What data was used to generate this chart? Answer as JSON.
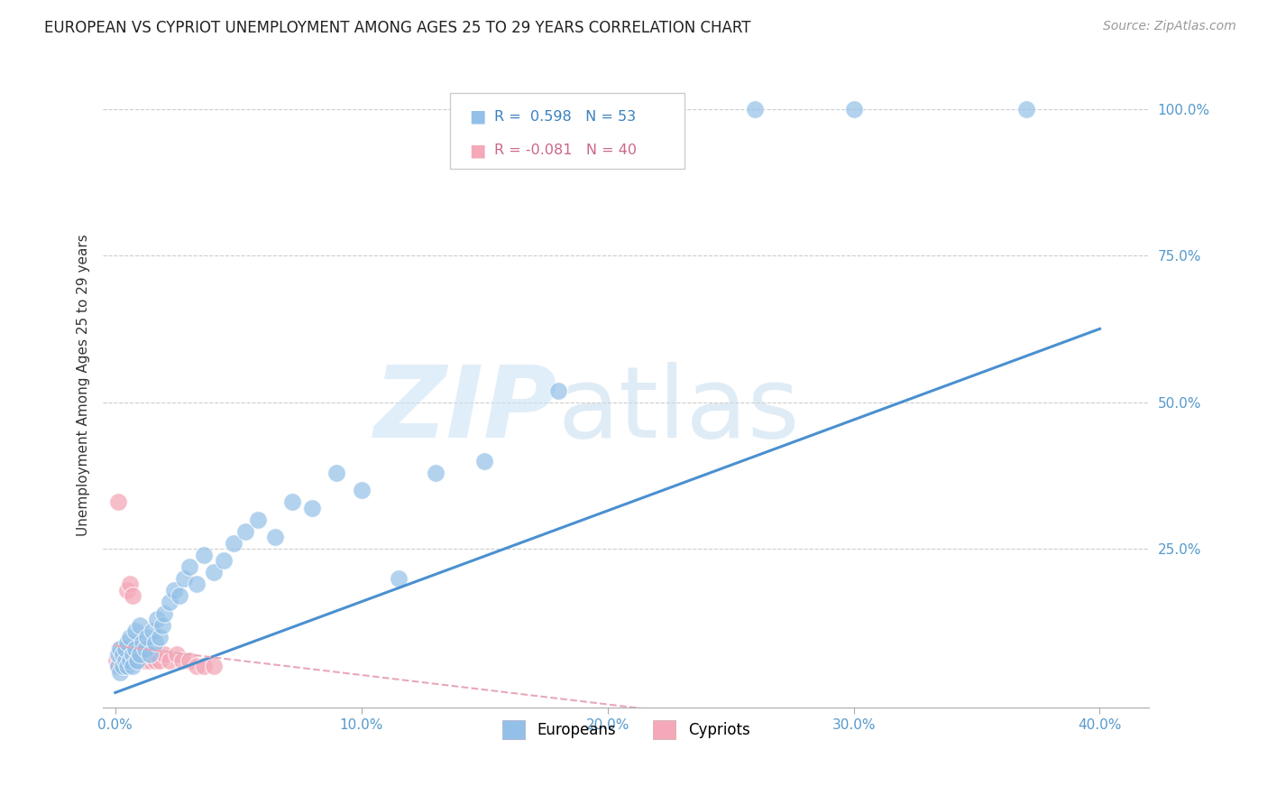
{
  "title": "EUROPEAN VS CYPRIOT UNEMPLOYMENT AMONG AGES 25 TO 29 YEARS CORRELATION CHART",
  "source": "Source: ZipAtlas.com",
  "ylabel": "Unemployment Among Ages 25 to 29 years",
  "xlim": [
    -0.005,
    0.42
  ],
  "ylim": [
    -0.02,
    1.08
  ],
  "xticks": [
    0.0,
    0.1,
    0.2,
    0.3,
    0.4
  ],
  "yticks": [
    0.0,
    0.25,
    0.5,
    0.75,
    1.0
  ],
  "xticklabels": [
    "0.0%",
    "10.0%",
    "20.0%",
    "30.0%",
    "40.0%"
  ],
  "yticklabels": [
    "",
    "25.0%",
    "50.0%",
    "75.0%",
    "100.0%"
  ],
  "grid_color": "#cccccc",
  "background_color": "#ffffff",
  "blue_color": "#92c0e8",
  "pink_color": "#f4a8b8",
  "blue_line_color": "#4a90d0",
  "pink_line_color": "#e8a8b8",
  "blue_line_slope": 1.55,
  "blue_line_intercept": 0.005,
  "pink_line_slope": -0.5,
  "pink_line_intercept": 0.085,
  "europeans_x": [
    0.001,
    0.001,
    0.002,
    0.002,
    0.003,
    0.003,
    0.004,
    0.004,
    0.005,
    0.005,
    0.006,
    0.006,
    0.007,
    0.007,
    0.008,
    0.008,
    0.009,
    0.01,
    0.01,
    0.011,
    0.012,
    0.013,
    0.014,
    0.015,
    0.016,
    0.017,
    0.018,
    0.019,
    0.02,
    0.022,
    0.024,
    0.026,
    0.028,
    0.03,
    0.033,
    0.036,
    0.04,
    0.044,
    0.048,
    0.053,
    0.058,
    0.065,
    0.072,
    0.08,
    0.09,
    0.1,
    0.115,
    0.13,
    0.15,
    0.18,
    0.26,
    0.3,
    0.37
  ],
  "europeans_y": [
    0.05,
    0.07,
    0.04,
    0.08,
    0.05,
    0.07,
    0.06,
    0.08,
    0.05,
    0.09,
    0.06,
    0.1,
    0.07,
    0.05,
    0.08,
    0.11,
    0.06,
    0.07,
    0.12,
    0.09,
    0.08,
    0.1,
    0.07,
    0.11,
    0.09,
    0.13,
    0.1,
    0.12,
    0.14,
    0.16,
    0.18,
    0.17,
    0.2,
    0.22,
    0.19,
    0.24,
    0.21,
    0.23,
    0.26,
    0.28,
    0.3,
    0.27,
    0.33,
    0.32,
    0.38,
    0.35,
    0.2,
    0.38,
    0.4,
    0.52,
    1.0,
    1.0,
    1.0
  ],
  "cypriots_x": [
    0.0005,
    0.001,
    0.001,
    0.001,
    0.0015,
    0.002,
    0.002,
    0.002,
    0.003,
    0.003,
    0.003,
    0.004,
    0.004,
    0.005,
    0.005,
    0.006,
    0.006,
    0.007,
    0.007,
    0.008,
    0.008,
    0.009,
    0.01,
    0.01,
    0.011,
    0.012,
    0.013,
    0.014,
    0.015,
    0.016,
    0.017,
    0.018,
    0.02,
    0.022,
    0.025,
    0.027,
    0.03,
    0.033,
    0.036,
    0.04
  ],
  "cypriots_y": [
    0.06,
    0.07,
    0.05,
    0.33,
    0.08,
    0.07,
    0.06,
    0.08,
    0.06,
    0.07,
    0.08,
    0.06,
    0.07,
    0.06,
    0.18,
    0.06,
    0.19,
    0.07,
    0.17,
    0.06,
    0.07,
    0.06,
    0.07,
    0.06,
    0.07,
    0.06,
    0.07,
    0.06,
    0.07,
    0.06,
    0.07,
    0.06,
    0.07,
    0.06,
    0.07,
    0.06,
    0.06,
    0.05,
    0.05,
    0.05
  ]
}
